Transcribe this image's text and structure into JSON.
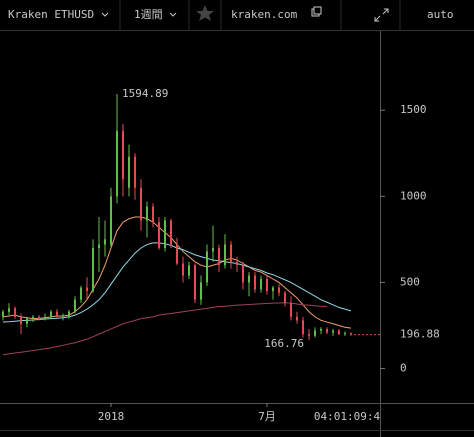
{
  "toolbar": {
    "symbol": "Kraken ETHUSD",
    "interval": "1週間",
    "site": "kraken.com",
    "scale": "auto"
  },
  "chart_data": {
    "type": "candlestick",
    "categories": [
      null,
      null,
      null,
      null,
      null,
      null,
      null,
      null,
      null,
      null,
      null,
      null,
      null,
      null,
      null,
      null,
      null,
      null,
      "2018",
      null,
      null,
      null,
      null,
      null,
      null,
      null,
      null,
      null,
      null,
      null,
      null,
      null,
      null,
      null,
      null,
      null,
      null,
      null,
      null,
      null,
      null,
      null,
      null,
      null,
      "7月",
      null,
      null,
      null,
      null,
      null,
      null,
      null,
      null,
      null,
      null,
      null,
      null,
      null,
      null
    ],
    "open": [
      300,
      330,
      350,
      300,
      260,
      290,
      300,
      290,
      300,
      330,
      300,
      300,
      330,
      400,
      470,
      450,
      700,
      720,
      720,
      1000,
      1380,
      1050,
      1230,
      1050,
      860,
      940,
      850,
      700,
      860,
      720,
      610,
      540,
      600,
      400,
      500,
      680,
      700,
      600,
      720,
      620,
      600,
      500,
      540,
      460,
      520,
      450,
      470,
      440,
      380,
      300,
      280,
      200,
      190,
      220,
      230,
      210,
      220,
      200,
      205
    ],
    "high": [
      340,
      380,
      360,
      320,
      300,
      310,
      310,
      320,
      340,
      345,
      320,
      340,
      420,
      480,
      530,
      750,
      880,
      860,
      1050,
      1594.89,
      1420,
      1300,
      1250,
      1100,
      970,
      960,
      880,
      880,
      870,
      760,
      650,
      620,
      610,
      540,
      720,
      830,
      720,
      780,
      740,
      650,
      620,
      560,
      560,
      540,
      540,
      480,
      490,
      450,
      420,
      330,
      300,
      230,
      240,
      240,
      240,
      230,
      230,
      215,
      210
    ],
    "low": [
      280,
      310,
      290,
      200,
      240,
      270,
      280,
      280,
      290,
      295,
      280,
      290,
      320,
      380,
      400,
      440,
      560,
      650,
      700,
      960,
      1000,
      1000,
      980,
      800,
      760,
      820,
      690,
      680,
      700,
      600,
      500,
      520,
      380,
      370,
      480,
      620,
      560,
      580,
      580,
      560,
      460,
      420,
      440,
      440,
      430,
      400,
      420,
      360,
      280,
      260,
      180,
      166.76,
      180,
      200,
      200,
      190,
      195,
      190,
      190
    ],
    "close": [
      330,
      350,
      300,
      260,
      290,
      300,
      290,
      300,
      330,
      300,
      300,
      330,
      400,
      470,
      450,
      700,
      720,
      750,
      1000,
      1380,
      1100,
      1230,
      1050,
      860,
      940,
      850,
      700,
      860,
      720,
      610,
      540,
      600,
      400,
      500,
      680,
      700,
      600,
      720,
      620,
      600,
      500,
      540,
      460,
      520,
      450,
      470,
      440,
      380,
      300,
      280,
      200,
      190,
      220,
      230,
      210,
      220,
      200,
      205,
      196.88
    ],
    "up_color": "#5fbf4a",
    "down_color": "#e04b55",
    "series": [
      {
        "color": "#f0a070",
        "values": [
          300,
          305,
          310,
          300,
          295,
          290,
          292,
          295,
          300,
          305,
          305,
          310,
          330,
          360,
          400,
          460,
          520,
          600,
          700,
          800,
          850,
          870,
          880,
          880,
          870,
          850,
          820,
          790,
          760,
          720,
          680,
          650,
          620,
          600,
          590,
          600,
          610,
          630,
          640,
          630,
          610,
          590,
          570,
          560,
          540,
          520,
          500,
          470,
          440,
          410,
          370,
          330,
          300,
          280,
          270,
          260,
          250,
          240,
          235
        ]
      },
      {
        "color": "#8fd8e8",
        "values": [
          270,
          272,
          275,
          278,
          280,
          282,
          285,
          288,
          290,
          292,
          295,
          300,
          310,
          325,
          345,
          370,
          400,
          440,
          490,
          540,
          590,
          630,
          670,
          700,
          720,
          730,
          730,
          725,
          715,
          700,
          690,
          675,
          660,
          650,
          640,
          630,
          625,
          620,
          615,
          610,
          600,
          590,
          580,
          570,
          555,
          545,
          530,
          515,
          500,
          480,
          460,
          440,
          420,
          400,
          385,
          370,
          355,
          345,
          335
        ]
      },
      {
        "color": "#a0405a",
        "values": [
          80,
          85,
          90,
          95,
          100,
          105,
          110,
          115,
          120,
          128,
          135,
          143,
          150,
          160,
          170,
          185,
          200,
          215,
          230,
          245,
          260,
          270,
          280,
          290,
          295,
          300,
          310,
          315,
          320,
          325,
          330,
          335,
          340,
          345,
          350,
          355,
          360,
          362,
          365,
          368,
          370,
          372,
          374,
          376,
          378,
          380,
          381,
          382,
          380,
          375,
          370,
          368,
          365,
          362,
          360,
          null,
          null,
          null,
          null
        ]
      }
    ],
    "ylim": [
      -200,
      1960
    ],
    "yticks": [
      0,
      500,
      1000,
      1500
    ],
    "countdown": "04:01:09:4"
  }
}
